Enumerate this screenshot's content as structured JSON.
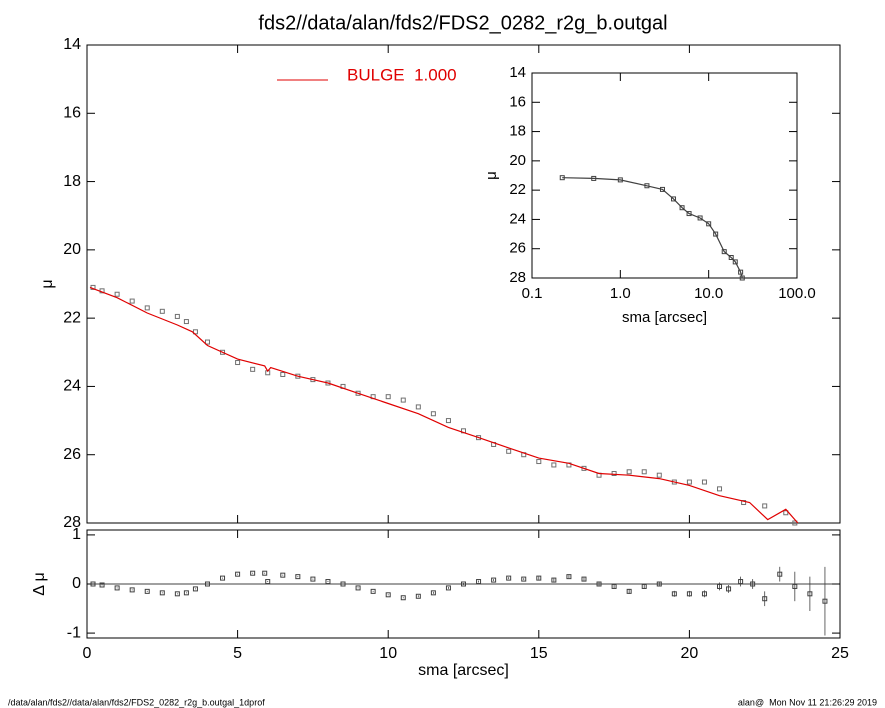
{
  "title": "fds2//data/alan/fds2/FDS2_0282_r2g_b.outgal",
  "footer_left": "/data/alan/fds2//data/alan/fds2/FDS2_0282_r2g_b.outgal_1dprof",
  "footer_right": "alan@  Mon Nov 11 21:26:29 2019",
  "chart_data": [
    {
      "type": "scatter",
      "ylabel": "μ",
      "xlim": [
        0,
        25
      ],
      "xticks": [
        0,
        5,
        10,
        15,
        20,
        25
      ],
      "ylim": [
        28,
        14
      ],
      "yticks": [
        14,
        16,
        18,
        20,
        22,
        24,
        26,
        28
      ],
      "series": [
        {
          "style": "points",
          "color": "#707070",
          "x": [
            0.2,
            0.5,
            1.0,
            1.5,
            2.0,
            2.5,
            3.0,
            3.3,
            3.6,
            4.0,
            4.5,
            5.0,
            5.5,
            6.0,
            6.5,
            7.0,
            7.5,
            8.0,
            8.5,
            9.0,
            9.5,
            10.0,
            10.5,
            11.0,
            11.5,
            12.0,
            12.5,
            13.0,
            13.5,
            14.0,
            14.5,
            15.0,
            15.5,
            16.0,
            16.5,
            17.0,
            17.5,
            18.0,
            18.5,
            19.0,
            19.5,
            20.0,
            20.5,
            21.0,
            21.8,
            22.5,
            23.2,
            23.5
          ],
          "values": [
            21.1,
            21.2,
            21.3,
            21.5,
            21.7,
            21.8,
            21.95,
            22.1,
            22.4,
            22.7,
            23.0,
            23.3,
            23.5,
            23.6,
            23.65,
            23.7,
            23.8,
            23.9,
            24.0,
            24.2,
            24.3,
            24.3,
            24.4,
            24.6,
            24.8,
            25.0,
            25.3,
            25.5,
            25.7,
            25.9,
            26.0,
            26.2,
            26.3,
            26.3,
            26.4,
            26.6,
            26.55,
            26.5,
            26.5,
            26.6,
            26.8,
            26.8,
            26.8,
            27.0,
            27.4,
            27.5,
            27.7,
            28.0
          ]
        },
        {
          "name": "BULGE  1.000",
          "style": "line",
          "color": "#e00000",
          "x": [
            0.1,
            1,
            2,
            3,
            3.5,
            4,
            5,
            5.9,
            6.0,
            6.1,
            7,
            8,
            9,
            10,
            11,
            12,
            13,
            14,
            15,
            16,
            17,
            18,
            19,
            20,
            21,
            22,
            22.6,
            23.2,
            23.6
          ],
          "values": [
            21.1,
            21.4,
            21.85,
            22.2,
            22.4,
            22.8,
            23.2,
            23.4,
            23.55,
            23.45,
            23.7,
            23.9,
            24.2,
            24.5,
            24.8,
            25.2,
            25.5,
            25.8,
            26.1,
            26.25,
            26.55,
            26.6,
            26.7,
            26.9,
            27.2,
            27.4,
            27.9,
            27.6,
            28.0
          ]
        }
      ]
    },
    {
      "type": "scatter",
      "xlabel": "sma [arcsec]",
      "ylabel": "μ",
      "xlog": true,
      "xlim": [
        0.1,
        100
      ],
      "xticks": [
        0.1,
        {
          "value": 1,
          "label": "1.0"
        },
        {
          "value": 10,
          "label": "10.0"
        },
        {
          "value": 100,
          "label": "100.0"
        }
      ],
      "ylim": [
        28,
        14
      ],
      "yticks": [
        14,
        16,
        18,
        20,
        22,
        24,
        26,
        28
      ],
      "series": [
        {
          "style": "points+line",
          "color": "#404040",
          "x": [
            0.22,
            0.5,
            1,
            2,
            3,
            4,
            5,
            6,
            8,
            10,
            12,
            15,
            18,
            20,
            23,
            24
          ],
          "values": [
            21.15,
            21.2,
            21.3,
            21.7,
            21.95,
            22.6,
            23.2,
            23.6,
            23.9,
            24.3,
            25.0,
            26.2,
            26.6,
            26.9,
            27.6,
            28.0
          ]
        }
      ]
    },
    {
      "type": "scatter",
      "xlabel": "sma [arcsec]",
      "ylabel": "Δ μ",
      "xlim": [
        0,
        25
      ],
      "xticks": [
        0,
        5,
        10,
        15,
        20,
        25
      ],
      "ylim": [
        -1.1,
        1.1
      ],
      "yticks": [
        -1,
        0,
        1
      ],
      "hline": 0,
      "series": [
        {
          "style": "errorbar",
          "color": "#404040",
          "x": [
            0.2,
            0.5,
            1,
            1.5,
            2,
            2.5,
            3,
            3.3,
            3.6,
            4,
            4.5,
            5,
            5.5,
            5.9,
            6.0,
            6.5,
            7,
            7.5,
            8,
            8.5,
            9,
            9.5,
            10,
            10.5,
            11,
            11.5,
            12,
            12.5,
            13,
            13.5,
            14,
            14.5,
            15,
            15.5,
            16,
            16.5,
            17,
            17.5,
            18,
            18.5,
            19,
            19.5,
            20,
            20.5,
            21,
            21.3,
            21.7,
            22.1,
            22.5,
            23,
            23.5,
            24,
            24.5
          ],
          "values": [
            0.0,
            -0.02,
            -0.08,
            -0.12,
            -0.15,
            -0.18,
            -0.2,
            -0.18,
            -0.1,
            0.0,
            0.12,
            0.2,
            0.22,
            0.22,
            0.05,
            0.18,
            0.15,
            0.1,
            0.05,
            0.0,
            -0.08,
            -0.15,
            -0.22,
            -0.28,
            -0.25,
            -0.18,
            -0.08,
            0.0,
            0.05,
            0.08,
            0.12,
            0.1,
            0.12,
            0.08,
            0.15,
            0.1,
            0.0,
            -0.05,
            -0.15,
            -0.05,
            0.0,
            -0.2,
            -0.2,
            -0.2,
            -0.05,
            -0.1,
            0.05,
            0.0,
            -0.3,
            0.2,
            -0.05,
            -0.2,
            -0.35
          ],
          "errors": [
            0.01,
            0.01,
            0.01,
            0.01,
            0.01,
            0.01,
            0.01,
            0.01,
            0.01,
            0.01,
            0.01,
            0.01,
            0.01,
            0.01,
            0.01,
            0.01,
            0.01,
            0.01,
            0.01,
            0.01,
            0.01,
            0.01,
            0.01,
            0.01,
            0.02,
            0.02,
            0.02,
            0.02,
            0.02,
            0.02,
            0.02,
            0.02,
            0.03,
            0.03,
            0.03,
            0.03,
            0.04,
            0.04,
            0.05,
            0.05,
            0.05,
            0.06,
            0.06,
            0.07,
            0.08,
            0.08,
            0.1,
            0.1,
            0.15,
            0.15,
            0.3,
            0.35,
            0.7
          ]
        }
      ]
    }
  ]
}
